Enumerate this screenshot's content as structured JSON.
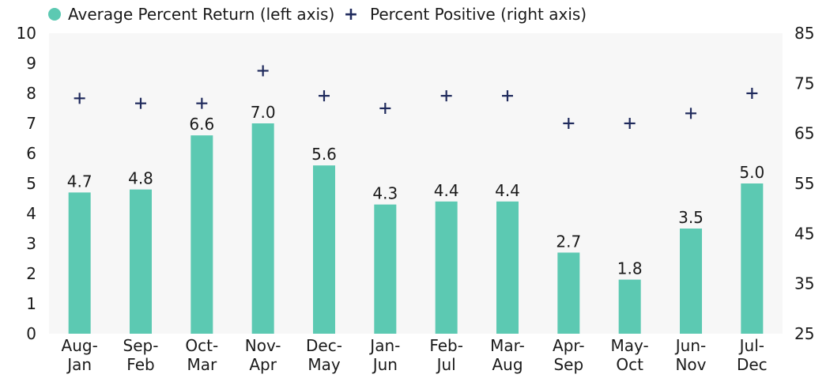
{
  "chart_data": {
    "type": "bar",
    "categories": [
      [
        "Aug-",
        "Jan"
      ],
      [
        "Sep-",
        "Feb"
      ],
      [
        "Oct-",
        "Mar"
      ],
      [
        "Nov-",
        "Apr"
      ],
      [
        "Dec-",
        "May"
      ],
      [
        "Jan-",
        "Jun"
      ],
      [
        "Feb-",
        "Jul"
      ],
      [
        "Mar-",
        "Aug"
      ],
      [
        "Apr-",
        "Sep"
      ],
      [
        "May-",
        "Oct"
      ],
      [
        "Jun-",
        "Nov"
      ],
      [
        "Jul-",
        "Dec"
      ]
    ],
    "series": [
      {
        "name": "Average Percent Return (left axis)",
        "type": "bar",
        "axis": "left",
        "color": "#5cc9b2",
        "values": [
          4.7,
          4.8,
          6.6,
          7.0,
          5.6,
          4.3,
          4.4,
          4.4,
          2.7,
          1.8,
          3.5,
          5.0
        ],
        "data_labels": [
          "4.7",
          "4.8",
          "6.6",
          "7.0",
          "5.6",
          "4.3",
          "4.4",
          "4.4",
          "2.7",
          "1.8",
          "3.5",
          "5.0"
        ]
      },
      {
        "name": "Percent Positive (right axis)",
        "type": "scatter",
        "marker": "+",
        "axis": "right",
        "color": "#1f2a5c",
        "values": [
          72,
          71,
          71,
          77.5,
          72.5,
          70,
          72.5,
          72.5,
          67,
          67,
          69,
          73
        ]
      }
    ],
    "left_axis": {
      "ylim": [
        0,
        10
      ],
      "ticks": [
        "0",
        "1",
        "2",
        "3",
        "4",
        "5",
        "6",
        "7",
        "8",
        "9",
        "10"
      ]
    },
    "right_axis": {
      "ylim": [
        25,
        85
      ],
      "ticks": [
        "25",
        "35",
        "45",
        "55",
        "65",
        "75",
        "85"
      ]
    },
    "plot_background": "#f7f7f7",
    "grid": false,
    "legend_position": "top-left"
  }
}
